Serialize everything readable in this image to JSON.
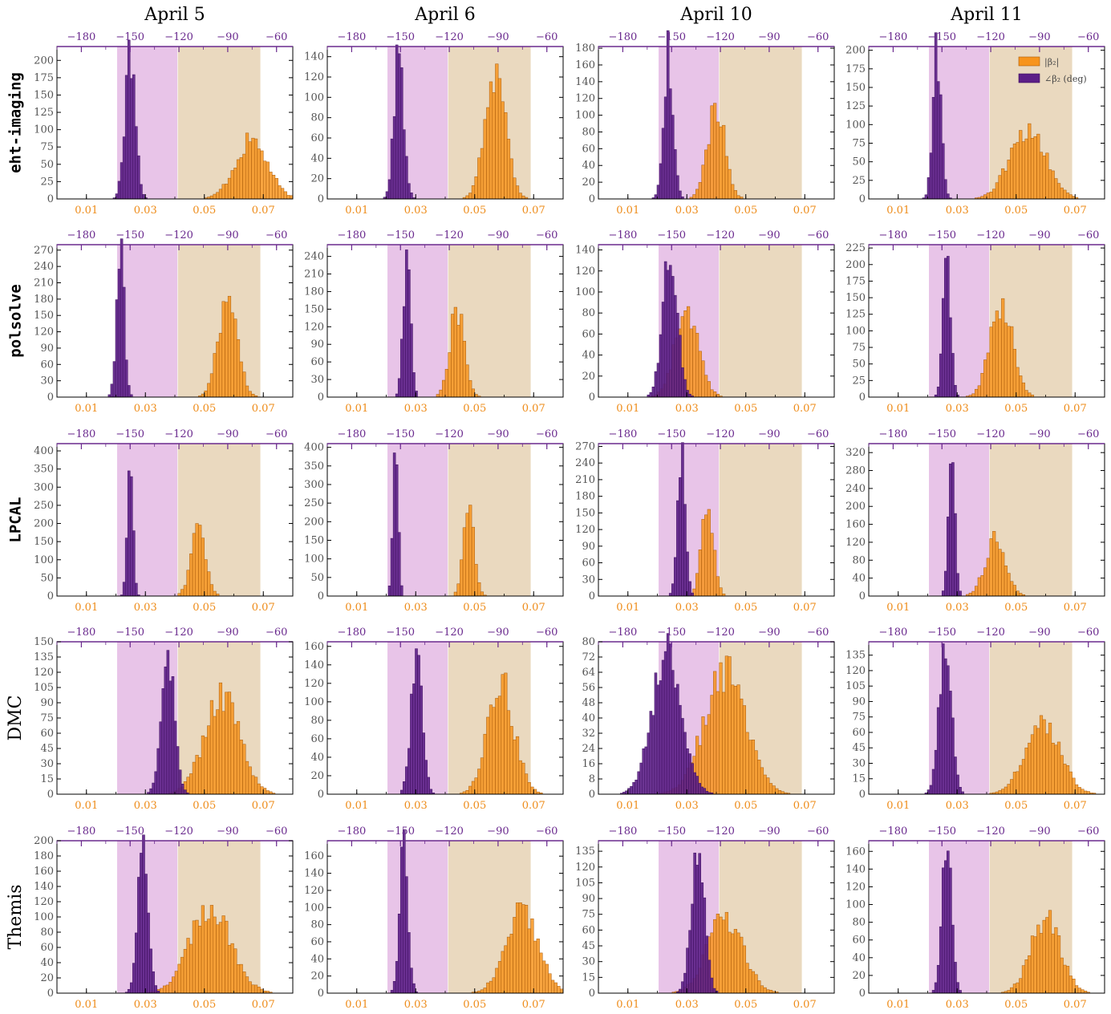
{
  "colors": {
    "angle_hist": "#5c1f87",
    "angle_edge": "#3d0f5e",
    "amp_hist": "#f7941d",
    "amp_edge": "#a85a0a",
    "angle_band": "#e8c4e8",
    "amp_band": "#ead9bf",
    "top_tick_color": "#6a2a8e",
    "bottom_tick_color": "#ee8c1a"
  },
  "legend": {
    "amp_label": "|β₂|",
    "angle_label": "∠β₂ (deg)"
  },
  "chart_data": {
    "type": "bar",
    "columns": [
      "April 5",
      "April 6",
      "April 10",
      "April 11"
    ],
    "rows": [
      "eht-imaging",
      "polsolve",
      "LPCAL",
      "DMC",
      "Themis"
    ],
    "x_amp_range": [
      0.0,
      0.08
    ],
    "x_amp_ticks": [
      "0.01",
      "0.03",
      "0.05",
      "0.07"
    ],
    "x_amp_tick_values": [
      0.01,
      0.03,
      0.05,
      0.07
    ],
    "x_angle_range": [
      -195,
      -50
    ],
    "x_angle_ticks": [
      "−180",
      "−150",
      "−120",
      "−90",
      "−60"
    ],
    "x_angle_tick_values": [
      -180,
      -150,
      -120,
      -90,
      -60
    ],
    "angle_band_deg": [
      -158,
      -121
    ],
    "amp_band": [
      0.041,
      0.069
    ],
    "panels": [
      {
        "row": 0,
        "col": 0,
        "ymax": 220,
        "ytick_step": 25,
        "angle": {
          "center": -150,
          "sd": 3.2,
          "peak": 205
        },
        "amp": {
          "center": 0.066,
          "sd": 0.0055,
          "peak": 84
        }
      },
      {
        "row": 0,
        "col": 1,
        "ymax": 150,
        "ytick_step": 20,
        "angle": {
          "center": -151,
          "sd": 3.0,
          "peak": 145
        },
        "amp": {
          "center": 0.057,
          "sd": 0.0035,
          "peak": 128
        }
      },
      {
        "row": 0,
        "col": 2,
        "ymax": 182,
        "ytick_step": 20,
        "angle": {
          "center": -152,
          "sd": 3.0,
          "peak": 173
        },
        "amp": {
          "center": 0.04,
          "sd": 0.003,
          "peak": 112
        }
      },
      {
        "row": 0,
        "col": 3,
        "ymax": 205,
        "ytick_step": 25,
        "angle": {
          "center": -153,
          "sd": 2.6,
          "peak": 198
        },
        "amp": {
          "center": 0.054,
          "sd": 0.006,
          "peak": 95
        }
      },
      {
        "row": 1,
        "col": 0,
        "ymax": 280,
        "ytick_step": 30,
        "angle": {
          "center": -156,
          "sd": 2.4,
          "peak": 270
        },
        "amp": {
          "center": 0.058,
          "sd": 0.0032,
          "peak": 190
        }
      },
      {
        "row": 1,
        "col": 1,
        "ymax": 260,
        "ytick_step": 30,
        "angle": {
          "center": -146,
          "sd": 2.3,
          "peak": 250
        },
        "amp": {
          "center": 0.044,
          "sd": 0.0025,
          "peak": 150
        }
      },
      {
        "row": 1,
        "col": 2,
        "ymax": 145,
        "ytick_step": 20,
        "angle": {
          "center": -151,
          "sd": 4.5,
          "peak": 138
        },
        "amp": {
          "center": 0.03,
          "sd": 0.004,
          "peak": 80
        }
      },
      {
        "row": 1,
        "col": 3,
        "ymax": 230,
        "ytick_step": 25,
        "angle": {
          "center": -147,
          "sd": 2.3,
          "peak": 222
        },
        "amp": {
          "center": 0.045,
          "sd": 0.0038,
          "peak": 138
        }
      },
      {
        "row": 2,
        "col": 0,
        "ymax": 420,
        "ytick_step": 50,
        "angle": {
          "center": -150,
          "sd": 1.7,
          "peak": 400
        },
        "amp": {
          "center": 0.048,
          "sd": 0.0025,
          "peak": 180
        }
      },
      {
        "row": 2,
        "col": 1,
        "ymax": 410,
        "ytick_step": 50,
        "angle": {
          "center": -153,
          "sd": 1.6,
          "peak": 400
        },
        "amp": {
          "center": 0.048,
          "sd": 0.0018,
          "peak": 245
        }
      },
      {
        "row": 2,
        "col": 2,
        "ymax": 275,
        "ytick_step": 30,
        "angle": {
          "center": -144,
          "sd": 2.4,
          "peak": 265
        },
        "amp": {
          "center": 0.037,
          "sd": 0.002,
          "peak": 165
        }
      },
      {
        "row": 2,
        "col": 3,
        "ymax": 340,
        "ytick_step": 40,
        "angle": {
          "center": -144,
          "sd": 2.0,
          "peak": 330
        },
        "amp": {
          "center": 0.043,
          "sd": 0.0035,
          "peak": 125
        }
      },
      {
        "row": 3,
        "col": 0,
        "ymax": 150,
        "ytick_step": 15,
        "angle": {
          "center": -127,
          "sd": 4.0,
          "peak": 138
        },
        "amp": {
          "center": 0.056,
          "sd": 0.006,
          "peak": 95
        }
      },
      {
        "row": 3,
        "col": 1,
        "ymax": 165,
        "ytick_step": 20,
        "angle": {
          "center": -140,
          "sd": 3.4,
          "peak": 160
        },
        "amp": {
          "center": 0.059,
          "sd": 0.0045,
          "peak": 118
        }
      },
      {
        "row": 3,
        "col": 2,
        "ymax": 80,
        "ytick_step": 8,
        "angle": {
          "center": -153,
          "sd": 9.0,
          "peak": 76
        },
        "amp": {
          "center": 0.043,
          "sd": 0.007,
          "peak": 65
        }
      },
      {
        "row": 3,
        "col": 3,
        "ymax": 148,
        "ytick_step": 15,
        "angle": {
          "center": -148,
          "sd": 3.8,
          "peak": 138
        },
        "amp": {
          "center": 0.059,
          "sd": 0.006,
          "peak": 68
        }
      },
      {
        "row": 4,
        "col": 0,
        "ymax": 200,
        "ytick_step": 20,
        "angle": {
          "center": -142,
          "sd": 3.2,
          "peak": 190
        },
        "amp": {
          "center": 0.052,
          "sd": 0.007,
          "peak": 110
        }
      },
      {
        "row": 4,
        "col": 1,
        "ymax": 178,
        "ytick_step": 20,
        "angle": {
          "center": -148,
          "sd": 2.6,
          "peak": 170
        },
        "amp": {
          "center": 0.066,
          "sd": 0.0055,
          "peak": 95
        }
      },
      {
        "row": 4,
        "col": 2,
        "ymax": 145,
        "ytick_step": 15,
        "angle": {
          "center": -134,
          "sd": 4.0,
          "peak": 138
        },
        "amp": {
          "center": 0.043,
          "sd": 0.006,
          "peak": 72
        }
      },
      {
        "row": 4,
        "col": 3,
        "ymax": 172,
        "ytick_step": 20,
        "angle": {
          "center": -147,
          "sd": 3.0,
          "peak": 165
        },
        "amp": {
          "center": 0.06,
          "sd": 0.005,
          "peak": 83
        }
      }
    ]
  }
}
